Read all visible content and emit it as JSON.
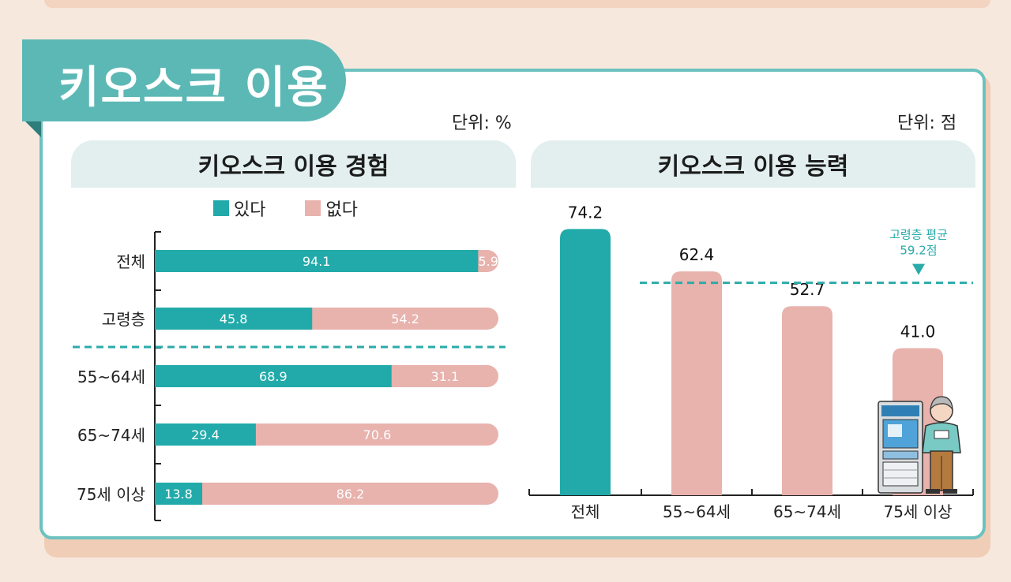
{
  "title": "키오스크 이용",
  "colors": {
    "yes": "#21aaa9",
    "no": "#e8b2ad",
    "teal_line": "#2aabaa",
    "panel_border": "#6cc2c0"
  },
  "left": {
    "unit": "단위: %",
    "header": "키오스크 이용 경험",
    "legend_yes": "있다",
    "legend_no": "없다"
  },
  "right": {
    "unit": "단위: 점",
    "header": "키오스크 이용 능력",
    "avg_label_line1": "고령층 평균",
    "avg_label_line2": "59.2점"
  },
  "chart_data": [
    {
      "type": "bar",
      "orientation": "horizontal-stacked",
      "title": "키오스크 이용 경험",
      "unit": "%",
      "categories": [
        "전체",
        "고령층",
        "55~64세",
        "65~74세",
        "75세 이상"
      ],
      "series": [
        {
          "name": "있다",
          "values": [
            94.1,
            45.8,
            68.9,
            29.4,
            13.8
          ]
        },
        {
          "name": "없다",
          "values": [
            5.9,
            54.2,
            31.1,
            70.6,
            86.2
          ]
        }
      ],
      "labels_yes": [
        "94.1",
        "45.8",
        "68.9",
        "29.4",
        "13.8"
      ],
      "labels_no": [
        "5.9",
        "54.2",
        "31.1",
        "70.6",
        "86.2"
      ]
    },
    {
      "type": "bar",
      "title": "키오스크 이용 능력",
      "unit": "점",
      "categories": [
        "전체",
        "55~64세",
        "65~74세",
        "75세 이상"
      ],
      "values": [
        74.2,
        62.4,
        52.7,
        41.0
      ],
      "value_labels": [
        "74.2",
        "62.4",
        "52.7",
        "41.0"
      ],
      "reference_line": {
        "value": 59.2,
        "label": "고령층 평균 59.2점"
      }
    }
  ]
}
